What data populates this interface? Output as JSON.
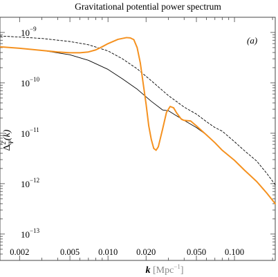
{
  "chart_data": {
    "type": "line",
    "title": "Gravitational potential power spectrum",
    "panel_label": "(a)",
    "xlabel": {
      "var": "k",
      "unit": "[Mpc",
      "exp": "−1",
      "close": "]"
    },
    "ylabel": {
      "prefix": "Δ",
      "sup": "2",
      "sub": "Ψ",
      "suffix": "(k)"
    },
    "xscale": "log",
    "yscale": "log",
    "xlim": [
      0.0014,
      0.21
    ],
    "ylim": [
      3e-14,
      2e-09
    ],
    "grid": false,
    "x_tick_labels": [
      "0.002",
      "0.005",
      "0.010",
      "0.020",
      "0.050",
      "0.100"
    ],
    "y_tick_labels": [
      {
        "mantissa": "10",
        "exp": "−9"
      },
      {
        "mantissa": "10",
        "exp": "−10"
      },
      {
        "mantissa": "10",
        "exp": "−11"
      },
      {
        "mantissa": "10",
        "exp": "−12"
      },
      {
        "mantissa": "10",
        "exp": "−13"
      }
    ],
    "series": [
      {
        "style": "dashed",
        "color": "#000000",
        "points": [
          [
            0.0014,
            8.5e-10
          ],
          [
            0.002,
            8.1e-10
          ],
          [
            0.003,
            7.6e-10
          ],
          [
            0.005,
            6.6e-10
          ],
          [
            0.007,
            5.7e-10
          ],
          [
            0.01,
            4.3e-10
          ],
          [
            0.013,
            3e-10
          ],
          [
            0.017,
            1.9e-10
          ],
          [
            0.022,
            1.1e-10
          ],
          [
            0.03,
            5.6e-11
          ],
          [
            0.04,
            3.3e-11
          ],
          [
            0.05,
            2.4e-11
          ],
          [
            0.06,
            1.7e-11
          ],
          [
            0.07,
            1.3e-11
          ],
          [
            0.08,
            1.1e-11
          ],
          [
            0.1,
            6.8e-12
          ],
          [
            0.12,
            4.5e-12
          ],
          [
            0.15,
            2.8e-12
          ],
          [
            0.18,
            1.6e-12
          ],
          [
            0.21,
            9.5e-13
          ]
        ]
      },
      {
        "style": "solid",
        "color": "#000000",
        "points": [
          [
            0.0014,
            5.2e-10
          ],
          [
            0.002,
            4.85e-10
          ],
          [
            0.003,
            4.4e-10
          ],
          [
            0.005,
            3.6e-10
          ],
          [
            0.007,
            2.8e-10
          ],
          [
            0.01,
            1.85e-10
          ],
          [
            0.013,
            1.2e-10
          ],
          [
            0.017,
            7.5e-11
          ],
          [
            0.022,
            4.3e-11
          ],
          [
            0.027,
            2.9e-11
          ],
          [
            0.03,
            2.8e-11
          ],
          [
            0.035,
            2.2e-11
          ],
          [
            0.04,
            1.8e-11
          ],
          [
            0.05,
            1.3e-11
          ],
          [
            0.06,
            9.3e-12
          ],
          [
            0.07,
            6.5e-12
          ],
          [
            0.08,
            4.6e-12
          ],
          [
            0.1,
            2.9e-12
          ],
          [
            0.12,
            1.85e-12
          ],
          [
            0.15,
            1.1e-12
          ],
          [
            0.18,
            6.5e-13
          ],
          [
            0.21,
            4e-13
          ]
        ]
      },
      {
        "style": "solid",
        "color": "#f5911f",
        "points": [
          [
            0.0014,
            5.2e-10
          ],
          [
            0.002,
            4.85e-10
          ],
          [
            0.003,
            4.4e-10
          ],
          [
            0.004,
            4.1e-10
          ],
          [
            0.005,
            3.95e-10
          ],
          [
            0.006,
            3.95e-10
          ],
          [
            0.007,
            4.1e-10
          ],
          [
            0.008,
            4.5e-10
          ],
          [
            0.009,
            5.2e-10
          ],
          [
            0.01,
            6e-10
          ],
          [
            0.012,
            7.3e-10
          ],
          [
            0.014,
            7.9e-10
          ],
          [
            0.015,
            7.8e-10
          ],
          [
            0.016,
            7.2e-10
          ],
          [
            0.017,
            5e-10
          ],
          [
            0.018,
            2.5e-10
          ],
          [
            0.019,
            9.5e-11
          ],
          [
            0.02,
            3.8e-11
          ],
          [
            0.021,
            1.4e-11
          ],
          [
            0.022,
            7.5e-12
          ],
          [
            0.023,
            5e-12
          ],
          [
            0.024,
            4.6e-12
          ],
          [
            0.025,
            5.4e-12
          ],
          [
            0.027,
            1.2e-11
          ],
          [
            0.029,
            2.6e-11
          ],
          [
            0.031,
            3.4e-11
          ],
          [
            0.033,
            3.2e-11
          ],
          [
            0.035,
            2.5e-11
          ],
          [
            0.038,
            1.9e-11
          ],
          [
            0.04,
            1.8e-11
          ],
          [
            0.045,
            1.75e-11
          ],
          [
            0.05,
            1.4e-11
          ],
          [
            0.06,
            9.3e-12
          ],
          [
            0.07,
            6.5e-12
          ],
          [
            0.08,
            4.6e-12
          ],
          [
            0.1,
            2.9e-12
          ],
          [
            0.12,
            1.85e-12
          ],
          [
            0.15,
            1.1e-12
          ],
          [
            0.18,
            6.5e-13
          ],
          [
            0.21,
            4e-13
          ]
        ]
      }
    ]
  }
}
